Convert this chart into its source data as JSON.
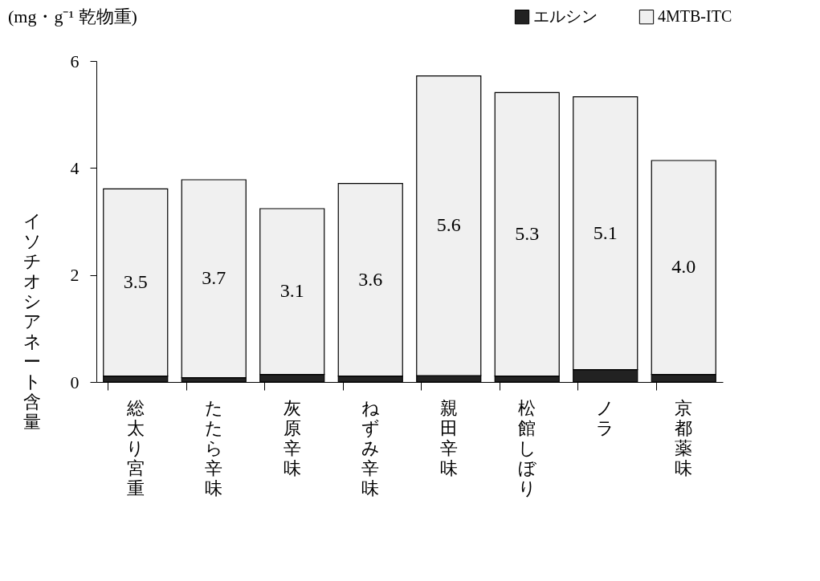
{
  "chart_data": {
    "type": "bar",
    "stacked": true,
    "ylabel": "イソチオシアネート含量",
    "annotations": [
      "(mg・g⁻¹ 乾物重)"
    ],
    "categories": [
      "総太り宮重",
      "たたら辛味",
      "灰原辛味",
      "ねずみ辛味",
      "親田辛味",
      "松館しぼり",
      "ノラ",
      "京都薬味"
    ],
    "series": [
      {
        "name": "エルシン",
        "color": "#222222",
        "values": [
          0.11,
          0.08,
          0.14,
          0.11,
          0.12,
          0.11,
          0.23,
          0.14
        ]
      },
      {
        "name": "4MTB-ITC",
        "color": "#f0f0f0",
        "values": [
          3.5,
          3.7,
          3.1,
          3.6,
          5.6,
          5.3,
          5.1,
          4.0
        ],
        "value_labels": [
          "3.5",
          "3.7",
          "3.1",
          "3.6",
          "5.6",
          "5.3",
          "5.1",
          "4.0"
        ]
      }
    ],
    "ylim": [
      0,
      6
    ],
    "yticks": [
      0,
      2,
      4,
      6
    ],
    "grid": false,
    "legend": "top right"
  }
}
